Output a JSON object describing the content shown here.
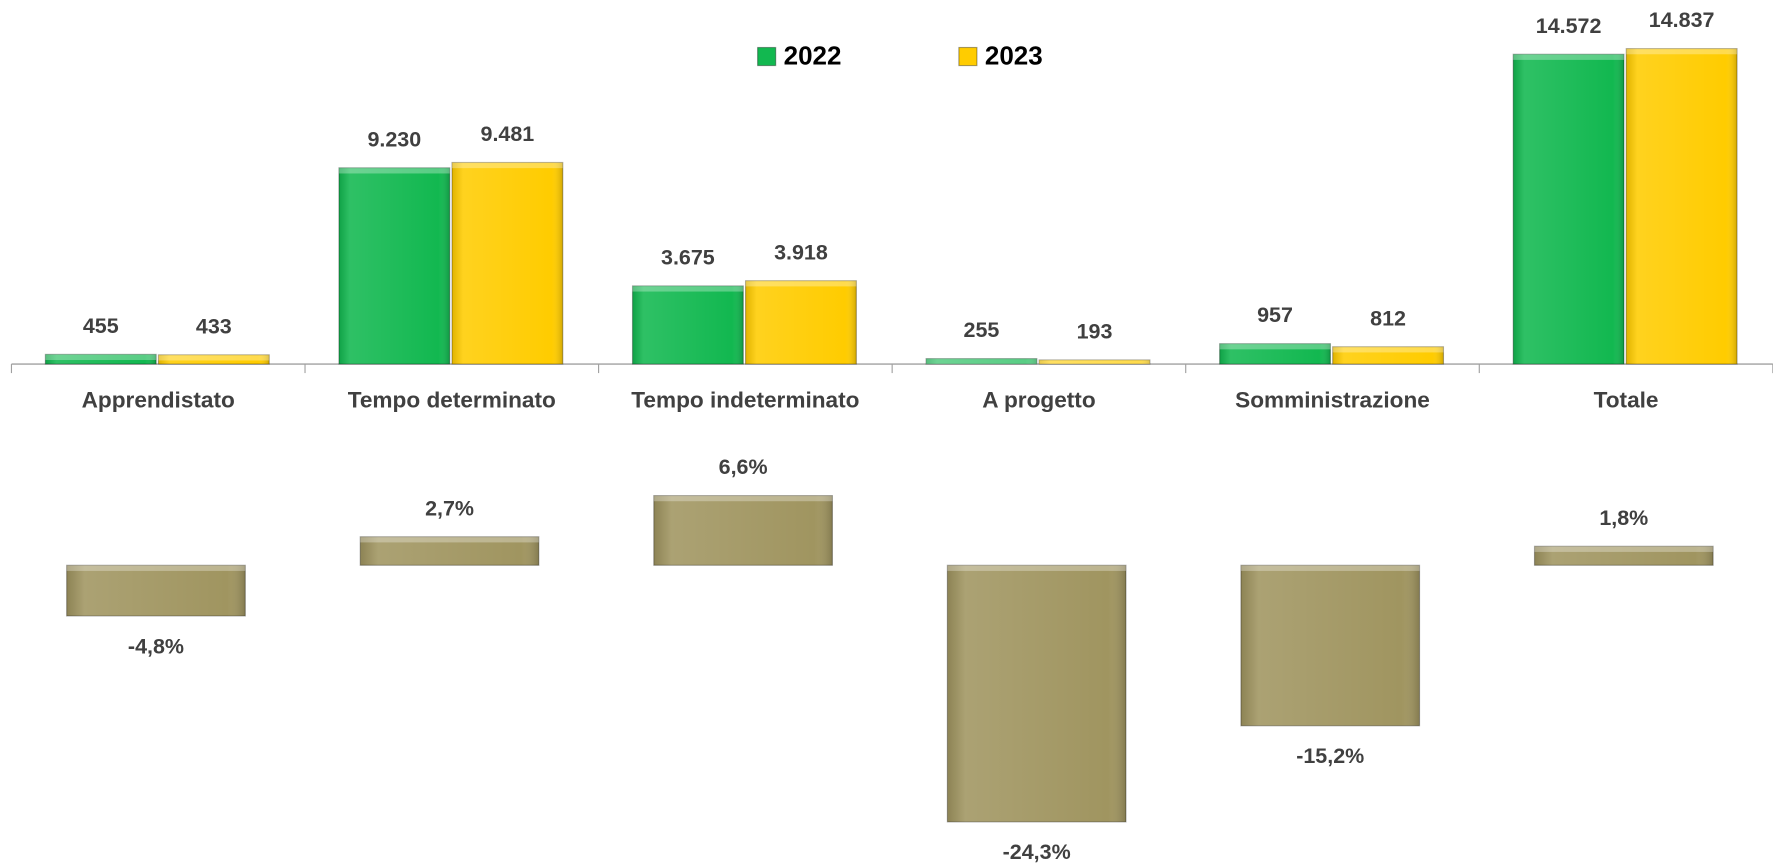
{
  "chart_data": [
    {
      "type": "bar",
      "categories": [
        "Apprendistato",
        "Tempo determinato",
        "Tempo indeterminato",
        "A progetto",
        "Somministrazione",
        "Totale"
      ],
      "series": [
        {
          "name": "2022",
          "color": "#12b850",
          "values": [
            455,
            9230,
            3675,
            255,
            957,
            14572
          ],
          "value_labels": [
            "455",
            "9.230",
            "3.675",
            "255",
            "957",
            "14.572"
          ]
        },
        {
          "name": "2023",
          "color": "#ffcc00",
          "values": [
            433,
            9481,
            3918,
            193,
            812,
            14837
          ],
          "value_labels": [
            "433",
            "9.481",
            "3.918",
            "193",
            "812",
            "14.837"
          ]
        }
      ],
      "legend": "top"
    },
    {
      "type": "bar",
      "values": [
        -4.8,
        2.7,
        6.6,
        -24.3,
        -15.2,
        1.8
      ],
      "value_labels": [
        "-4,8%",
        "2,7%",
        "6,6%",
        "-24,3%",
        "-15,2%",
        "1,8%"
      ],
      "color": "#a09560"
    }
  ]
}
